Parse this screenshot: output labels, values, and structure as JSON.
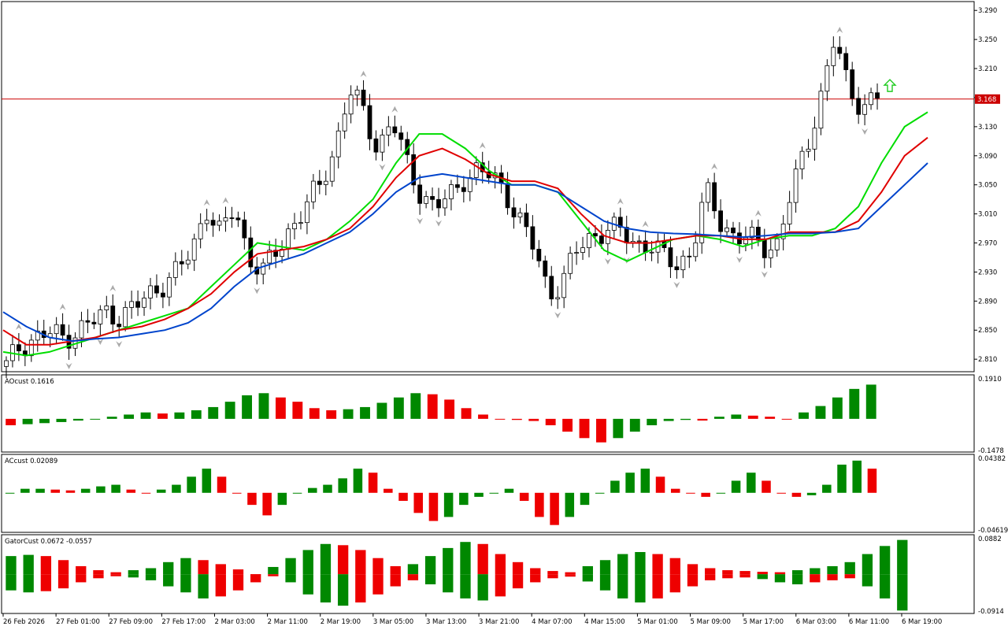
{
  "colors": {
    "background": "#ffffff",
    "frame": "#000000",
    "bull_candle": "#ffffff",
    "bear_candle": "#000000",
    "ma_fast": "#00dd00",
    "ma_mid": "#e00000",
    "ma_slow": "#0044cc",
    "price_line": "#cc0000",
    "price_tag_bg": "#cc0000",
    "bar_up": "#008800",
    "bar_down": "#ee0000",
    "fractal": "#aaaaaa",
    "arrow": "#22cc22"
  },
  "icons": {
    "fractal_up": "fractal-up-arrow",
    "fractal_down": "fractal-down-arrow",
    "signal": "up-arrow-outline-icon"
  },
  "chart_data": {
    "type": "candlestick",
    "price_axis": {
      "ticks": [
        "3.290",
        "3.250",
        "3.210",
        "3.170",
        "3.130",
        "3.090",
        "3.050",
        "3.010",
        "2.970",
        "2.930",
        "2.890",
        "2.850",
        "2.810"
      ],
      "range": [
        2.795,
        3.3
      ],
      "current_price": "3.168"
    },
    "time_axis": {
      "labels": [
        "26 Feb 2026",
        "27 Feb 01:00",
        "27 Feb 09:00",
        "27 Feb 17:00",
        "2 Mar 03:00",
        "2 Mar 11:00",
        "2 Mar 19:00",
        "3 Mar 05:00",
        "3 Mar 13:00",
        "3 Mar 21:00",
        "4 Mar 07:00",
        "4 Mar 15:00",
        "5 Mar 01:00",
        "5 Mar 09:00",
        "5 Mar 17:00",
        "6 Mar 03:00",
        "6 Mar 11:00",
        "6 Mar 19:00"
      ]
    },
    "close_path": [
      2.8,
      2.83,
      2.84,
      2.845,
      2.84,
      2.85,
      2.86,
      2.875,
      2.87,
      2.88,
      2.9,
      2.915,
      2.93,
      2.96,
      3.02,
      2.98,
      3.02,
      2.95,
      2.93,
      2.96,
      2.995,
      3.02,
      3.05,
      3.1,
      3.18,
      3.15,
      3.1,
      3.14,
      3.08,
      3.04,
      3.02,
      3.03,
      3.06,
      3.07,
      3.06,
      3.04,
      3.0,
      2.96,
      2.9,
      2.92,
      2.96,
      2.98,
      2.99,
      2.985,
      2.97,
      2.97,
      2.95,
      2.94,
      2.96,
      3.04,
      3.0,
      2.98,
      2.975,
      2.965,
      2.97,
      3.04,
      3.1,
      3.17,
      3.25,
      3.18,
      3.16,
      3.17
    ],
    "moving_averages": [
      {
        "key": "green",
        "values": [
          2.82,
          2.815,
          2.82,
          2.83,
          2.84,
          2.85,
          2.86,
          2.87,
          2.88,
          2.91,
          2.94,
          2.97,
          2.965,
          2.96,
          2.975,
          3.0,
          3.03,
          3.08,
          3.12,
          3.12,
          3.1,
          3.07,
          3.05,
          3.05,
          3.04,
          3.0,
          2.96,
          2.945,
          2.96,
          2.975,
          2.98,
          2.975,
          2.965,
          2.975,
          2.98,
          2.98,
          2.99,
          3.02,
          3.08,
          3.13,
          3.15
        ]
      },
      {
        "key": "red",
        "values": [
          2.85,
          2.83,
          2.83,
          2.835,
          2.84,
          2.85,
          2.855,
          2.865,
          2.88,
          2.9,
          2.93,
          2.955,
          2.96,
          2.965,
          2.975,
          2.99,
          3.02,
          3.06,
          3.09,
          3.1,
          3.085,
          3.065,
          3.055,
          3.055,
          3.045,
          3.01,
          2.98,
          2.97,
          2.97,
          2.975,
          2.98,
          2.98,
          2.975,
          2.975,
          2.985,
          2.985,
          2.985,
          3.0,
          3.04,
          3.09,
          3.115
        ]
      },
      {
        "key": "blue",
        "values": [
          2.875,
          2.855,
          2.84,
          2.835,
          2.838,
          2.84,
          2.845,
          2.85,
          2.86,
          2.88,
          2.91,
          2.935,
          2.945,
          2.955,
          2.97,
          2.985,
          3.01,
          3.04,
          3.06,
          3.065,
          3.06,
          3.055,
          3.05,
          3.05,
          3.04,
          3.02,
          3.0,
          2.99,
          2.985,
          2.983,
          2.982,
          2.98,
          2.978,
          2.98,
          2.983,
          2.983,
          2.985,
          2.99,
          3.02,
          3.05,
          3.08
        ]
      }
    ],
    "ao_panel": {
      "label": "AOcust 0.1616",
      "ticks": [
        "0.1910",
        "-0.1478"
      ],
      "range": [
        -0.1478,
        0.191
      ],
      "values": [
        -0.03,
        -0.025,
        -0.02,
        -0.015,
        -0.008,
        -0.003,
        0.01,
        0.02,
        0.03,
        0.025,
        0.03,
        0.04,
        0.055,
        0.08,
        0.11,
        0.12,
        0.1,
        0.08,
        0.05,
        0.04,
        0.045,
        0.055,
        0.075,
        0.1,
        0.12,
        0.115,
        0.09,
        0.05,
        0.02,
        0.0,
        -0.005,
        -0.01,
        -0.03,
        -0.06,
        -0.09,
        -0.11,
        -0.09,
        -0.06,
        -0.03,
        -0.01,
        -0.005,
        -0.008,
        0.01,
        0.02,
        0.015,
        0.01,
        0.0,
        0.03,
        0.06,
        0.1,
        0.14,
        0.16
      ]
    },
    "ac_panel": {
      "label": "ACcust 0.02089",
      "ticks": [
        "0.04382",
        "-0.04619"
      ],
      "range": [
        -0.04619,
        0.04382
      ],
      "values": [
        0.0,
        0.005,
        0.005,
        0.004,
        0.003,
        0.005,
        0.008,
        0.01,
        0.004,
        0.0,
        0.004,
        0.01,
        0.02,
        0.03,
        0.02,
        0.0,
        -0.015,
        -0.028,
        -0.015,
        0.0,
        0.006,
        0.01,
        0.018,
        0.03,
        0.025,
        0.005,
        -0.01,
        -0.025,
        -0.035,
        -0.03,
        -0.015,
        -0.005,
        0.0,
        0.005,
        -0.01,
        -0.03,
        -0.04,
        -0.03,
        -0.015,
        0.0,
        0.015,
        0.025,
        0.03,
        0.02,
        0.005,
        0.0,
        -0.005,
        0.0,
        0.015,
        0.025,
        0.015,
        0.0,
        -0.005,
        -0.003,
        0.01,
        0.035,
        0.04,
        0.03
      ]
    },
    "gator_panel": {
      "label": "GatorCust 0.0672 -0.0557",
      "ticks": [
        "0.0882",
        "-0.0914"
      ],
      "range": [
        -0.0914,
        0.0882
      ],
      "upper": [
        0.045,
        0.048,
        0.045,
        0.035,
        0.02,
        0.01,
        0.005,
        0.01,
        0.015,
        0.03,
        0.04,
        0.035,
        0.025,
        0.012,
        0.0,
        0.018,
        0.04,
        0.06,
        0.075,
        0.072,
        0.06,
        0.04,
        0.02,
        0.025,
        0.045,
        0.065,
        0.08,
        0.075,
        0.05,
        0.03,
        0.015,
        0.008,
        0.005,
        0.02,
        0.035,
        0.05,
        0.055,
        0.05,
        0.04,
        0.025,
        0.015,
        0.01,
        0.008,
        0.006,
        0.005,
        0.01,
        0.015,
        0.02,
        0.03,
        0.05,
        0.07,
        0.085
      ],
      "lower": [
        -0.04,
        -0.045,
        -0.042,
        -0.035,
        -0.02,
        -0.01,
        -0.005,
        -0.008,
        -0.015,
        -0.03,
        -0.045,
        -0.06,
        -0.055,
        -0.04,
        -0.02,
        -0.005,
        -0.02,
        -0.05,
        -0.07,
        -0.078,
        -0.07,
        -0.05,
        -0.03,
        -0.015,
        -0.025,
        -0.045,
        -0.06,
        -0.065,
        -0.055,
        -0.035,
        -0.02,
        -0.01,
        -0.006,
        -0.018,
        -0.04,
        -0.06,
        -0.07,
        -0.06,
        -0.045,
        -0.03,
        -0.015,
        -0.01,
        -0.008,
        -0.012,
        -0.02,
        -0.025,
        -0.02,
        -0.015,
        -0.01,
        -0.03,
        -0.06,
        -0.09
      ]
    }
  }
}
